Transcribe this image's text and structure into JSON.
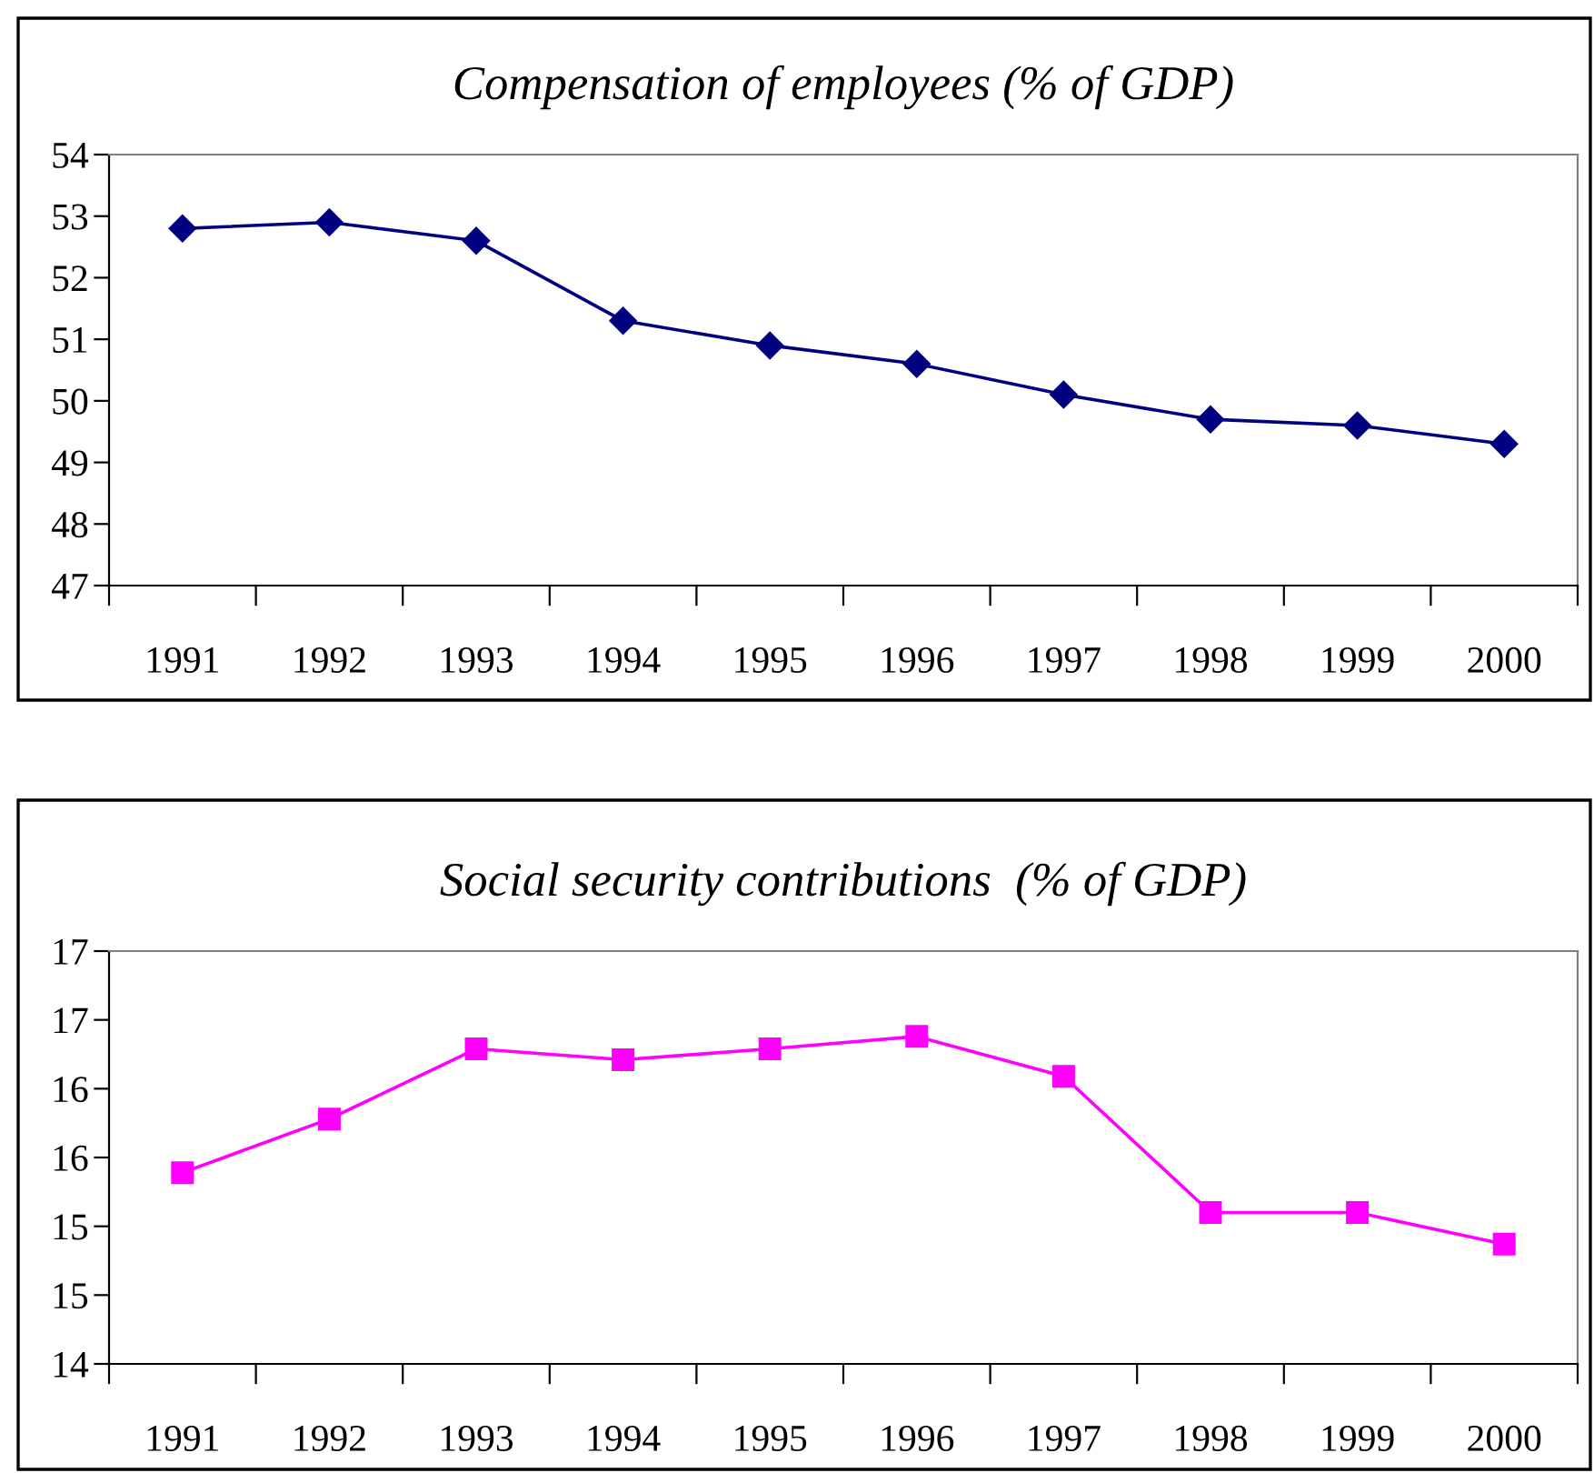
{
  "chart_data": [
    {
      "type": "line",
      "title": "Compensation of employees (% of GDP)",
      "categories": [
        "1991",
        "1992",
        "1993",
        "1994",
        "1995",
        "1996",
        "1997",
        "1998",
        "1999",
        "2000"
      ],
      "series": [
        {
          "color": "#000080",
          "values": [
            52.8,
            52.9,
            52.6,
            51.3,
            50.9,
            50.6,
            50.1,
            49.7,
            49.6,
            49.3
          ]
        }
      ],
      "ylim": [
        47,
        54
      ],
      "yticks": [
        47,
        48,
        49,
        50,
        51,
        52,
        53,
        54
      ],
      "marker": "diamond",
      "grid": false,
      "legend": false
    },
    {
      "type": "line",
      "title": "Social security contributions  (% of GDP)",
      "categories": [
        "1991",
        "1992",
        "1993",
        "1994",
        "1995",
        "1996",
        "1997",
        "1998",
        "1999",
        "2000"
      ],
      "series": [
        {
          "color": "#ff00ff",
          "values": [
            15.39,
            15.78,
            16.29,
            16.21,
            16.29,
            16.38,
            16.09,
            15.1,
            15.1,
            14.87
          ]
        }
      ],
      "ylim": [
        14,
        17
      ],
      "yticks": [
        14,
        {
          "value": 14.5,
          "label": "15"
        },
        15,
        {
          "value": 15.5,
          "label": "16"
        },
        16,
        {
          "value": 16.5,
          "label": "17"
        },
        17
      ],
      "marker": "square",
      "grid": false,
      "legend": false
    }
  ]
}
